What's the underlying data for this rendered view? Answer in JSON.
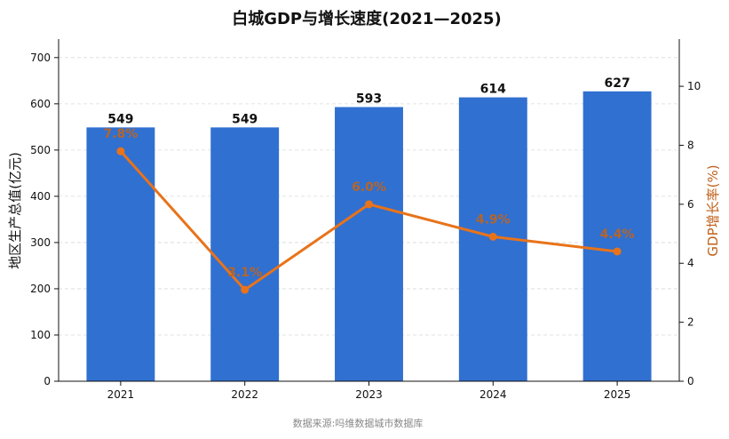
{
  "chart_data": {
    "type": "bar",
    "title": "白城GDP与增长速度(2021—2025)",
    "categories": [
      "2021",
      "2022",
      "2023",
      "2024",
      "2025"
    ],
    "series": [
      {
        "name": "",
        "type": "bar",
        "axis": "left",
        "values": [
          549,
          549,
          593,
          614,
          627
        ],
        "color": "#3070d0"
      },
      {
        "name": "",
        "type": "line",
        "axis": "right",
        "values": [
          7.8,
          3.1,
          6.0,
          4.9,
          4.4
        ],
        "color": "#e8731a"
      }
    ],
    "bar_labels": [
      "549",
      "549",
      "593",
      "614",
      "627"
    ],
    "rate_labels": [
      "7.8%",
      "3.1%",
      "6.0%",
      "4.9%",
      "4.4%"
    ],
    "ylabel": "地区生产总值(亿元)",
    "y2label": "GDP增长率(%)",
    "ylim": [
      0,
      740
    ],
    "y2lim": [
      0,
      11.6
    ],
    "yticks": [
      "0",
      "100",
      "200",
      "300",
      "400",
      "500",
      "600",
      "700"
    ],
    "y2ticks": [
      "0",
      "2",
      "4",
      "6",
      "8",
      "10"
    ],
    "grid": true,
    "colors": {
      "bar": "#3070d0",
      "line": "#e8731a",
      "rate_label": "#b5652a",
      "y2label": "#c0601a"
    }
  },
  "source": "数据来源:吗维数据城市数据库"
}
